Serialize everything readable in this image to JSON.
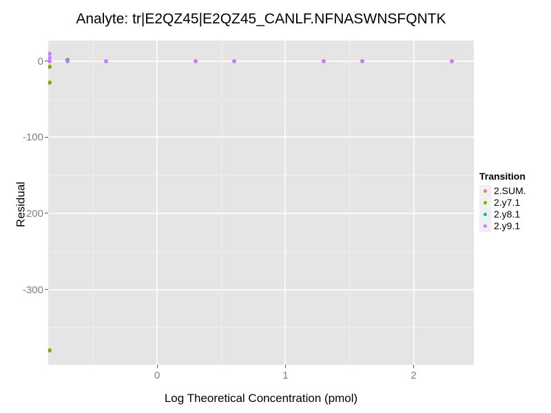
{
  "chart_data": {
    "type": "scatter",
    "title": "Analyte: tr|E2QZ45|E2QZ45_CANLF.NFNASWNSFQNTK",
    "xlabel": "Log Theoretical Concentration (pmol)",
    "ylabel": "Residual",
    "xlim": [
      -0.85,
      2.47
    ],
    "ylim": [
      -399,
      27
    ],
    "x_major_ticks": [
      0,
      1,
      2
    ],
    "x_minor_gridlines": [
      -0.5,
      0.5,
      1.5
    ],
    "y_major_ticks": [
      0,
      -100,
      -200,
      -300
    ],
    "y_minor_gridlines": [
      -50,
      -150,
      -250,
      -350
    ],
    "grid": "on",
    "panel_background": "#E5E5E5",
    "legend_position": "right",
    "legend_title": "Transition",
    "series": [
      {
        "name": "2.SUM.",
        "color": "#F8766D",
        "points": []
      },
      {
        "name": "2.y7.1",
        "color": "#7CAE00",
        "points": [
          [
            -0.84,
            -7
          ],
          [
            -0.84,
            -28
          ],
          [
            -0.84,
            -380
          ],
          [
            -0.7,
            2
          ]
        ]
      },
      {
        "name": "2.y8.1",
        "color": "#00BFC4",
        "points": [
          [
            -0.7,
            1
          ]
        ]
      },
      {
        "name": "2.y9.1",
        "color": "#C77CFF",
        "points": [
          [
            -0.84,
            10
          ],
          [
            -0.84,
            4
          ],
          [
            -0.84,
            0
          ],
          [
            -0.7,
            0
          ],
          [
            -0.4,
            0
          ],
          [
            0.3,
            0
          ],
          [
            0.6,
            0
          ],
          [
            1.3,
            0
          ],
          [
            1.6,
            0
          ],
          [
            2.3,
            0
          ]
        ]
      }
    ]
  }
}
